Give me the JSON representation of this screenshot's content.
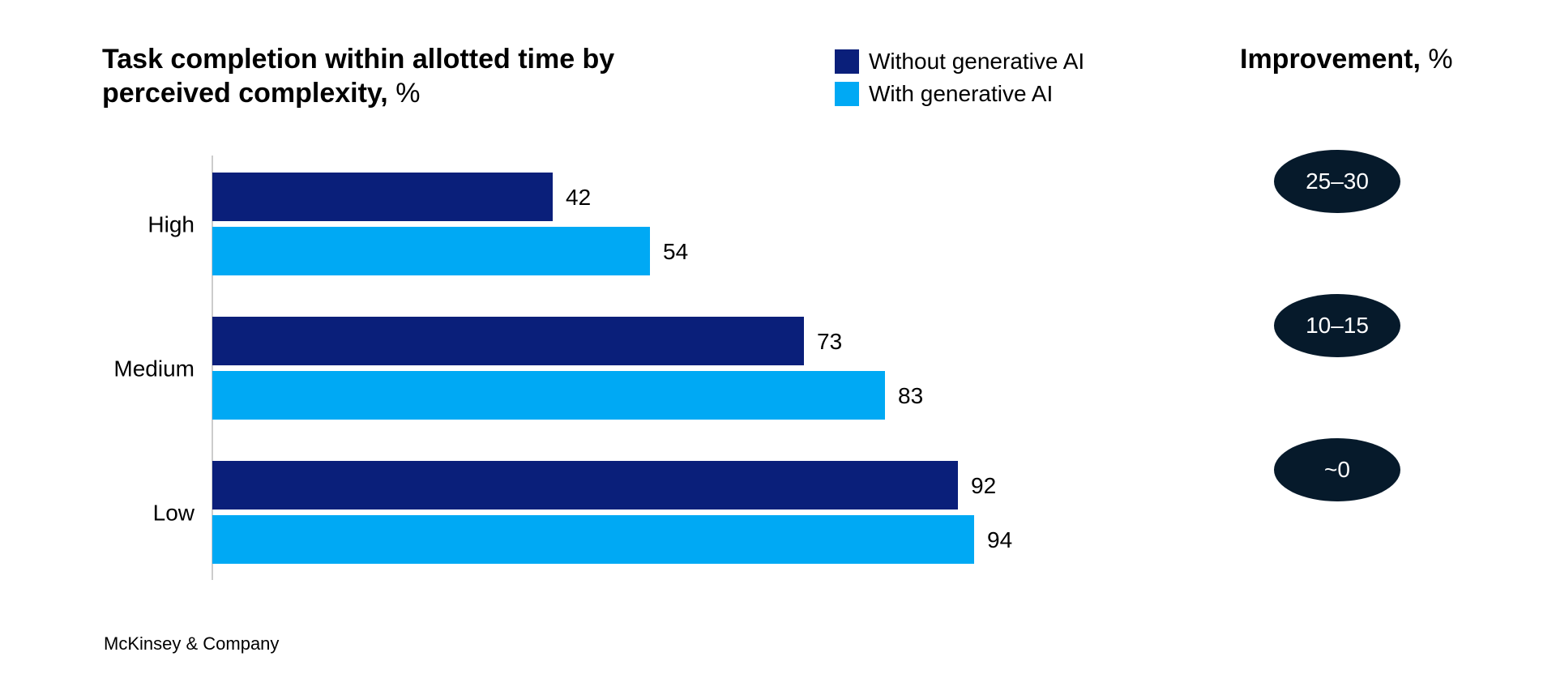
{
  "chart_data": {
    "type": "bar",
    "orientation": "horizontal",
    "title_bold": "Task completion within allotted time by perceived complexity,",
    "title_unit": "%",
    "categories": [
      "High",
      "Medium",
      "Low"
    ],
    "series": [
      {
        "name": "Without generative AI",
        "color": "#0a1f7a",
        "values": [
          42,
          73,
          92
        ]
      },
      {
        "name": "With generative AI",
        "color": "#00a9f4",
        "values": [
          54,
          83,
          94
        ]
      }
    ],
    "xlim": [
      0,
      100
    ],
    "legend_position": "top-right"
  },
  "improvement": {
    "title_bold": "Improvement,",
    "title_unit": "%",
    "pill_color": "#061a2b",
    "values": [
      "25–30",
      "10–15",
      "~0"
    ]
  },
  "source": "McKinsey & Company"
}
